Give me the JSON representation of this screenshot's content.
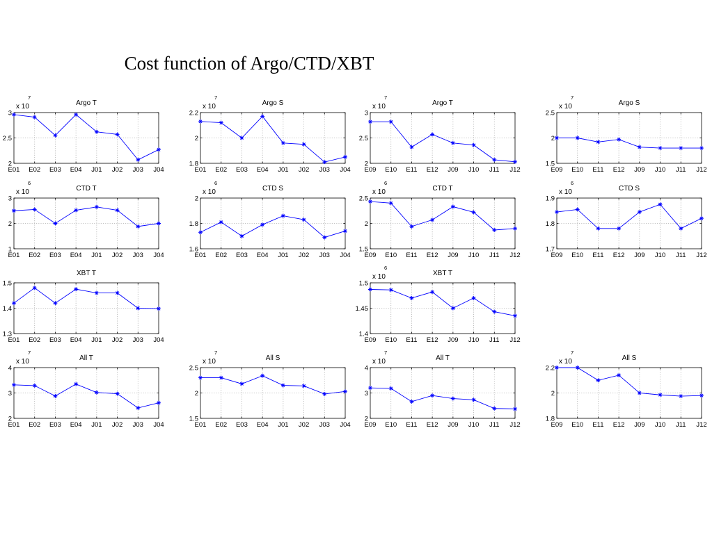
{
  "page": {
    "title": "Cost function of Argo/CTD/XBT"
  },
  "chart_data": [
    {
      "id": "r1c1",
      "type": "line",
      "title": "Argo T",
      "exponent": "x 10",
      "exponent_power": "7",
      "categories": [
        "E01",
        "E02",
        "E03",
        "E04",
        "J01",
        "J02",
        "J03",
        "J04"
      ],
      "values": [
        2.96,
        2.91,
        2.55,
        2.96,
        2.62,
        2.57,
        2.07,
        2.27
      ],
      "ylim": [
        2,
        3
      ],
      "yticks": [
        2,
        2.5,
        3
      ],
      "ytick_labels": [
        "2",
        "2.5",
        "3"
      ],
      "color": "#0000ff",
      "marker": "*"
    },
    {
      "id": "r1c2",
      "type": "line",
      "title": "Argo S",
      "exponent": "x 10",
      "exponent_power": "7",
      "categories": [
        "E01",
        "E02",
        "E03",
        "E04",
        "J01",
        "J02",
        "J03",
        "J04"
      ],
      "values": [
        2.13,
        2.12,
        2.0,
        2.17,
        1.96,
        1.95,
        1.81,
        1.85
      ],
      "ylim": [
        1.8,
        2.2
      ],
      "yticks": [
        1.8,
        2,
        2.2
      ],
      "ytick_labels": [
        "1.8",
        "2",
        "2.2"
      ],
      "color": "#0000ff",
      "marker": "*"
    },
    {
      "id": "r1c3",
      "type": "line",
      "title": "Argo T",
      "exponent": "x 10",
      "exponent_power": "7",
      "categories": [
        "E09",
        "E10",
        "E11",
        "E12",
        "J09",
        "J10",
        "J11",
        "J12"
      ],
      "values": [
        2.82,
        2.82,
        2.32,
        2.57,
        2.4,
        2.36,
        2.07,
        2.03
      ],
      "ylim": [
        2,
        3
      ],
      "yticks": [
        2,
        2.5,
        3
      ],
      "ytick_labels": [
        "2",
        "2.5",
        "3"
      ],
      "color": "#0000ff",
      "marker": "*"
    },
    {
      "id": "r1c4",
      "type": "line",
      "title": "Argo S",
      "exponent": "x 10",
      "exponent_power": "7",
      "categories": [
        "E09",
        "E10",
        "E11",
        "E12",
        "J09",
        "J10",
        "J11",
        "J12"
      ],
      "values": [
        2.0,
        2.0,
        1.92,
        1.97,
        1.82,
        1.8,
        1.8,
        1.8
      ],
      "ylim": [
        1.5,
        2.5
      ],
      "yticks": [
        1.5,
        2,
        2.5
      ],
      "ytick_labels": [
        "1.5",
        "2",
        "2.5"
      ],
      "color": "#0000ff",
      "marker": "*"
    },
    {
      "id": "r2c1",
      "type": "line",
      "title": "CTD T",
      "exponent": "x 10",
      "exponent_power": "6",
      "categories": [
        "E01",
        "E02",
        "E03",
        "E04",
        "J01",
        "J02",
        "J03",
        "J04"
      ],
      "values": [
        2.5,
        2.55,
        2.0,
        2.52,
        2.65,
        2.52,
        1.88,
        2.0
      ],
      "ylim": [
        1,
        3
      ],
      "yticks": [
        1,
        2,
        3
      ],
      "ytick_labels": [
        "1",
        "2",
        "3"
      ],
      "color": "#0000ff",
      "marker": "*"
    },
    {
      "id": "r2c2",
      "type": "line",
      "title": "CTD S",
      "exponent": "x 10",
      "exponent_power": "6",
      "categories": [
        "E01",
        "E02",
        "E03",
        "E04",
        "J01",
        "J02",
        "J03",
        "J04"
      ],
      "values": [
        1.73,
        1.81,
        1.7,
        1.79,
        1.86,
        1.83,
        1.69,
        1.74
      ],
      "ylim": [
        1.6,
        2
      ],
      "yticks": [
        1.6,
        1.8,
        2
      ],
      "ytick_labels": [
        "1.6",
        "1.8",
        "2"
      ],
      "color": "#0000ff",
      "marker": "*"
    },
    {
      "id": "r2c3",
      "type": "line",
      "title": "CTD T",
      "exponent": "x 10",
      "exponent_power": "6",
      "categories": [
        "E09",
        "E10",
        "E11",
        "E12",
        "J09",
        "J10",
        "J11",
        "J12"
      ],
      "values": [
        2.43,
        2.4,
        1.94,
        2.07,
        2.33,
        2.22,
        1.87,
        1.9
      ],
      "ylim": [
        1.5,
        2.5
      ],
      "yticks": [
        1.5,
        2,
        2.5
      ],
      "ytick_labels": [
        "1.5",
        "2",
        "2.5"
      ],
      "color": "#0000ff",
      "marker": "*"
    },
    {
      "id": "r2c4",
      "type": "line",
      "title": "CTD S",
      "exponent": "x 10",
      "exponent_power": "6",
      "categories": [
        "E09",
        "E10",
        "E11",
        "E12",
        "J09",
        "J10",
        "J11",
        "J12"
      ],
      "values": [
        1.845,
        1.855,
        1.78,
        1.78,
        1.845,
        1.875,
        1.78,
        1.82
      ],
      "ylim": [
        1.7,
        1.9
      ],
      "yticks": [
        1.7,
        1.8,
        1.9
      ],
      "ytick_labels": [
        "1.7",
        "1.8",
        "1.9"
      ],
      "color": "#0000ff",
      "marker": "*"
    },
    {
      "id": "r3c1",
      "type": "line",
      "title": "XBT T",
      "exponent": "",
      "exponent_power": "",
      "categories": [
        "E01",
        "E02",
        "E03",
        "E04",
        "J01",
        "J02",
        "J03",
        "J04"
      ],
      "values": [
        1.42,
        1.48,
        1.42,
        1.475,
        1.46,
        1.46,
        1.4,
        1.398
      ],
      "ylim": [
        1.3,
        1.5
      ],
      "yticks": [
        1.3,
        1.4,
        1.5
      ],
      "ytick_labels": [
        "1.3",
        "1.4",
        "1.5"
      ],
      "color": "#0000ff",
      "marker": "*"
    },
    {
      "id": "r3c3",
      "type": "line",
      "title": "XBT T",
      "exponent": "x 10",
      "exponent_power": "6",
      "categories": [
        "E09",
        "E10",
        "E11",
        "E12",
        "J09",
        "J10",
        "J11",
        "J12"
      ],
      "values": [
        1.487,
        1.486,
        1.47,
        1.482,
        1.45,
        1.47,
        1.443,
        1.435
      ],
      "ylim": [
        1.4,
        1.5
      ],
      "yticks": [
        1.4,
        1.45,
        1.5
      ],
      "ytick_labels": [
        "1.4",
        "1.45",
        "1.5"
      ],
      "color": "#0000ff",
      "marker": "*"
    },
    {
      "id": "r4c1",
      "type": "line",
      "title": "All T",
      "exponent": "x 10",
      "exponent_power": "7",
      "categories": [
        "E01",
        "E02",
        "E03",
        "E04",
        "J01",
        "J02",
        "J03",
        "J04"
      ],
      "values": [
        3.32,
        3.29,
        2.88,
        3.35,
        3.02,
        2.97,
        2.41,
        2.61
      ],
      "ylim": [
        2,
        4
      ],
      "yticks": [
        2,
        3,
        4
      ],
      "ytick_labels": [
        "2",
        "3",
        "4"
      ],
      "color": "#0000ff",
      "marker": "*"
    },
    {
      "id": "r4c2",
      "type": "line",
      "title": "All S",
      "exponent": "x 10",
      "exponent_power": "7",
      "categories": [
        "E01",
        "E02",
        "E03",
        "E04",
        "J01",
        "J02",
        "J03",
        "J04"
      ],
      "values": [
        2.3,
        2.3,
        2.18,
        2.34,
        2.15,
        2.14,
        1.98,
        2.03
      ],
      "ylim": [
        1.5,
        2.5
      ],
      "yticks": [
        1.5,
        2,
        2.5
      ],
      "ytick_labels": [
        "1.5",
        "2",
        "2.5"
      ],
      "color": "#0000ff",
      "marker": "*"
    },
    {
      "id": "r4c3",
      "type": "line",
      "title": "All T",
      "exponent": "x 10",
      "exponent_power": "7",
      "categories": [
        "E09",
        "E10",
        "E11",
        "E12",
        "J09",
        "J10",
        "J11",
        "J12"
      ],
      "values": [
        3.2,
        3.18,
        2.66,
        2.9,
        2.78,
        2.73,
        2.39,
        2.37
      ],
      "ylim": [
        2,
        4
      ],
      "yticks": [
        2,
        3,
        4
      ],
      "ytick_labels": [
        "2",
        "3",
        "4"
      ],
      "color": "#0000ff",
      "marker": "*"
    },
    {
      "id": "r4c4",
      "type": "line",
      "title": "All S",
      "exponent": "x 10",
      "exponent_power": "7",
      "categories": [
        "E09",
        "E10",
        "E11",
        "E12",
        "J09",
        "J10",
        "J11",
        "J12"
      ],
      "values": [
        2.2,
        2.2,
        2.1,
        2.14,
        2.0,
        1.985,
        1.975,
        1.98
      ],
      "ylim": [
        1.8,
        2.2
      ],
      "yticks": [
        1.8,
        2,
        2.2
      ],
      "ytick_labels": [
        "1.8",
        "2",
        "2.2"
      ],
      "color": "#0000ff",
      "marker": "*"
    }
  ]
}
